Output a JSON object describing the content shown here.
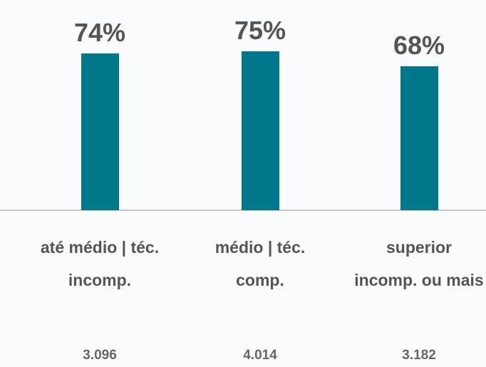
{
  "chart_data": {
    "type": "bar",
    "categories": [
      "até médio | téc. incomp.",
      "médio | téc. comp.",
      "superior incomp. ou mais"
    ],
    "values": [
      74,
      75,
      68
    ],
    "value_labels": [
      "74%",
      "75%",
      "68%"
    ],
    "sample_sizes": [
      "3.096",
      "4.014",
      "3.182"
    ],
    "color": "#00778a",
    "ylim": [
      0,
      100
    ]
  }
}
